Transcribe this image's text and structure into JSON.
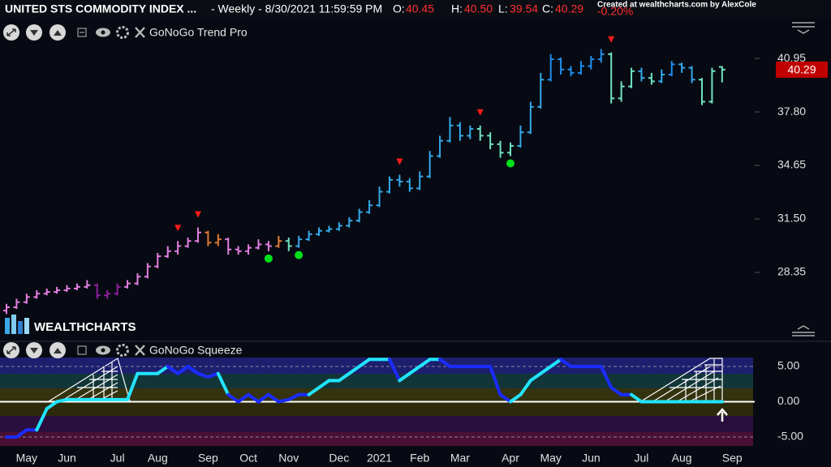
{
  "chart_data": [
    {
      "type": "ohlc",
      "title": "UNITED STS COMMODITY INDEX ...",
      "subtitle": "- Weekly - 8/30/2021 11:59:59 PM",
      "ohlc_labels": [
        "O:",
        "H:",
        "L:",
        "C:"
      ],
      "last_bar_labels": [
        "40.45",
        "40.50",
        "39.54",
        "40.29"
      ],
      "change_label": "-0.20%",
      "credit": "Created at wealthcharts.com by AlexCole",
      "indicator": "GoNoGo Trend Pro",
      "watermark": "WEALTHCHARTS",
      "open": [
        26.1,
        26.3,
        26.6,
        26.9,
        27.1,
        27.2,
        27.3,
        27.4,
        27.5,
        27.6,
        27.0,
        27.1,
        27.5,
        27.7,
        28.1,
        28.7,
        29.3,
        29.6,
        29.9,
        30.2,
        30.7,
        30.1,
        30.3,
        29.7,
        29.6,
        29.8,
        30.0,
        29.9,
        30.2,
        29.9,
        30.3,
        30.6,
        30.8,
        30.9,
        31.1,
        31.4,
        31.9,
        32.3,
        33.1,
        33.8,
        33.7,
        33.3,
        34.0,
        35.2,
        36.1,
        37.0,
        36.4,
        36.8,
        36.4,
        35.9,
        35.4,
        35.8,
        36.6,
        38.1,
        39.7,
        40.9,
        40.3,
        40.1,
        40.5,
        40.9,
        41.2,
        38.6,
        39.3,
        40.2,
        39.8,
        39.6,
        40.0,
        40.6,
        40.4,
        39.7,
        38.4,
        40.45
      ],
      "high": [
        26.5,
        26.8,
        27.1,
        27.3,
        27.4,
        27.5,
        27.6,
        27.7,
        27.9,
        27.7,
        27.3,
        27.7,
        27.9,
        28.3,
        28.9,
        29.5,
        29.9,
        30.2,
        30.4,
        31.0,
        30.8,
        30.6,
        30.4,
        29.9,
        30.0,
        30.3,
        30.2,
        30.5,
        30.4,
        30.5,
        30.8,
        31.0,
        31.1,
        31.3,
        31.6,
        32.1,
        32.6,
        33.4,
        34.0,
        34.1,
        33.9,
        34.3,
        35.5,
        36.4,
        37.5,
        37.2,
        37.0,
        37.0,
        36.6,
        36.1,
        36.0,
        37.0,
        38.4,
        40.1,
        41.2,
        41.0,
        40.5,
        40.8,
        41.1,
        41.5,
        41.3,
        39.6,
        40.4,
        40.4,
        40.1,
        40.3,
        40.8,
        40.7,
        40.5,
        39.8,
        40.4,
        40.5
      ],
      "low": [
        25.9,
        26.2,
        26.5,
        26.8,
        27.0,
        27.1,
        27.2,
        27.3,
        27.4,
        26.8,
        26.8,
        27.0,
        27.4,
        27.6,
        28.0,
        28.6,
        29.2,
        29.4,
        29.8,
        30.1,
        29.9,
        29.9,
        29.4,
        29.4,
        29.4,
        29.7,
        29.6,
        29.8,
        29.6,
        29.8,
        30.2,
        30.5,
        30.7,
        30.8,
        31.0,
        31.3,
        31.8,
        32.2,
        33.0,
        33.4,
        33.1,
        33.2,
        33.9,
        35.1,
        36.0,
        36.1,
        36.2,
        36.1,
        35.6,
        35.1,
        35.2,
        35.7,
        36.5,
        38.0,
        39.6,
        40.0,
        39.9,
        40.0,
        40.3,
        40.7,
        38.3,
        38.4,
        39.2,
        39.6,
        39.4,
        39.5,
        39.9,
        40.1,
        39.5,
        38.2,
        38.3,
        39.54
      ],
      "close": [
        26.3,
        26.6,
        26.9,
        27.1,
        27.2,
        27.3,
        27.4,
        27.5,
        27.6,
        27.0,
        27.1,
        27.5,
        27.7,
        28.1,
        28.7,
        29.3,
        29.6,
        29.9,
        30.2,
        30.7,
        30.1,
        30.3,
        29.7,
        29.6,
        29.8,
        30.0,
        29.9,
        30.2,
        29.9,
        30.3,
        30.6,
        30.8,
        30.9,
        31.1,
        31.4,
        31.9,
        32.3,
        33.1,
        33.8,
        33.7,
        33.3,
        34.0,
        35.2,
        36.1,
        37.0,
        36.4,
        36.8,
        36.4,
        35.9,
        35.4,
        35.8,
        36.6,
        38.1,
        39.7,
        40.9,
        40.3,
        40.1,
        40.5,
        40.9,
        41.2,
        38.6,
        39.3,
        40.2,
        39.8,
        39.6,
        40.0,
        40.6,
        40.4,
        39.7,
        38.4,
        40.2,
        40.29
      ],
      "colors": [
        "#e27ee2",
        "#e27ee2",
        "#e27ee2",
        "#e27ee2",
        "#e27ee2",
        "#e27ee2",
        "#e27ee2",
        "#e27ee2",
        "#e27ee2",
        "#8e1f9e",
        "#8e1f9e",
        "#8e1f9e",
        "#e27ee2",
        "#e27ee2",
        "#e27ee2",
        "#e27ee2",
        "#e27ee2",
        "#e27ee2",
        "#e27ee2",
        "#e27ee2",
        "#e07a36",
        "#e07a36",
        "#e27ee2",
        "#e27ee2",
        "#e27ee2",
        "#e27ee2",
        "#e27ee2",
        "#e07a36",
        "#6fe3c0",
        "#35a9ea",
        "#35a9ea",
        "#35a9ea",
        "#35a9ea",
        "#35a9ea",
        "#35a9ea",
        "#35a9ea",
        "#35a9ea",
        "#35a9ea",
        "#35a9ea",
        "#35a9ea",
        "#35a9ea",
        "#35a9ea",
        "#35a9ea",
        "#35a9ea",
        "#35a9ea",
        "#35a9ea",
        "#35a9ea",
        "#6fe3c0",
        "#6fe3c0",
        "#6fe3c0",
        "#6fe3c0",
        "#35a9ea",
        "#35a9ea",
        "#35a9ea",
        "#1e8ff0",
        "#1e8ff0",
        "#1e8ff0",
        "#1e8ff0",
        "#1e8ff0",
        "#1e8ff0",
        "#6fe3c0",
        "#6fe3c0",
        "#6fe3c0",
        "#35a9ea",
        "#6fe3c0",
        "#35a9ea",
        "#1e8ff0",
        "#35a9ea",
        "#35a9ea",
        "#6fe3c0",
        "#6fe3c0",
        "#6fe3c0"
      ],
      "markers": [
        {
          "index": 17,
          "shape": "triangle",
          "color": "#ff1a1a"
        },
        {
          "index": 19,
          "shape": "triangle",
          "color": "#ff1a1a"
        },
        {
          "index": 39,
          "shape": "triangle",
          "color": "#ff1a1a"
        },
        {
          "index": 47,
          "shape": "triangle",
          "color": "#ff1a1a"
        },
        {
          "index": 60,
          "shape": "triangle",
          "color": "#ff1a1a"
        },
        {
          "index": 26,
          "shape": "dot",
          "color": "#00e01a"
        },
        {
          "index": 29,
          "shape": "dot",
          "color": "#00e01a"
        },
        {
          "index": 50,
          "shape": "dot",
          "color": "#00e01a"
        }
      ],
      "ylim": [
        24.34,
        43.34
      ],
      "yticks": [
        28.35,
        {
          "value": 31.5,
          "label": "31.50"
        },
        34.65,
        {
          "value": 37.8,
          "label": "37.80"
        },
        40.95
      ],
      "last_value_color": "#c00000"
    },
    {
      "type": "line",
      "title": "GoNoGo Squeeze",
      "categories": [
        null,
        null,
        "May",
        null,
        null,
        null,
        "Jun",
        null,
        null,
        null,
        null,
        "Jul",
        null,
        null,
        null,
        "Aug",
        null,
        null,
        null,
        null,
        "Sep",
        null,
        null,
        null,
        "Oct",
        null,
        null,
        null,
        "Nov",
        null,
        null,
        null,
        null,
        "Dec",
        null,
        null,
        null,
        "2021",
        null,
        null,
        null,
        "Feb",
        null,
        null,
        null,
        "Mar",
        null,
        null,
        null,
        null,
        "Apr",
        null,
        null,
        null,
        "May",
        null,
        null,
        null,
        "Jun",
        null,
        null,
        null,
        null,
        "Jul",
        null,
        null,
        null,
        "Aug",
        null,
        null,
        null,
        null,
        "Sep"
      ],
      "values": [
        -5,
        -5,
        -4,
        -4,
        -1,
        0,
        0.3,
        0.3,
        0.3,
        0.3,
        0.3,
        0.3,
        0.3,
        4,
        4,
        4,
        5,
        4,
        5,
        4,
        3.5,
        4,
        1,
        0,
        1,
        0,
        1,
        0,
        0.3,
        1,
        1,
        2,
        3,
        3,
        4,
        5,
        6,
        6,
        6,
        3,
        4,
        5,
        6,
        6,
        5,
        5,
        5,
        5,
        5,
        1,
        0,
        1,
        3,
        4,
        5,
        6,
        5,
        5,
        5,
        5,
        2,
        1,
        1,
        0,
        0,
        0,
        0,
        0,
        0,
        0,
        0,
        0,
        null
      ],
      "colors": [
        "#1a2cff",
        "#1a2cff",
        "#1a2cff",
        "#1a2cff",
        "#22e4ff",
        "#22e4ff",
        "#22e4ff",
        "#22e4ff",
        "#22e4ff",
        "#22e4ff",
        "#22e4ff",
        "#22e4ff",
        "#22e4ff",
        "#22e4ff",
        "#22e4ff",
        "#22e4ff",
        "#22e4ff",
        "#1a2cff",
        "#1a2cff",
        "#1a2cff",
        "#1a2cff",
        "#1a2cff",
        "#22e4ff",
        "#1a2cff",
        "#1a2cff",
        "#1a2cff",
        "#1a2cff",
        "#1a2cff",
        "#1a2cff",
        "#1a2cff",
        "#1a2cff",
        "#22e4ff",
        "#22e4ff",
        "#22e4ff",
        "#22e4ff",
        "#22e4ff",
        "#22e4ff",
        "#22e4ff",
        "#22e4ff",
        "#1a2cff",
        "#22e4ff",
        "#22e4ff",
        "#22e4ff",
        "#22e4ff",
        "#1a2cff",
        "#1a2cff",
        "#1a2cff",
        "#1a2cff",
        "#1a2cff",
        "#1a2cff",
        "#1a2cff",
        "#22e4ff",
        "#22e4ff",
        "#22e4ff",
        "#22e4ff",
        "#22e4ff",
        "#1a2cff",
        "#1a2cff",
        "#1a2cff",
        "#1a2cff",
        "#1a2cff",
        "#1a2cff",
        "#1a2cff",
        "#22e4ff",
        "#22e4ff",
        "#22e4ff",
        "#22e4ff",
        "#22e4ff",
        "#22e4ff",
        "#22e4ff",
        "#22e4ff",
        "#22e4ff",
        null
      ],
      "ylim": [
        -6.5,
        8.45
      ],
      "yticks": [
        {
          "value": 5,
          "label": "5.00"
        },
        {
          "value": 0,
          "label": "0.00"
        },
        {
          "value": -5,
          "label": "-5.00"
        }
      ]
    }
  ]
}
